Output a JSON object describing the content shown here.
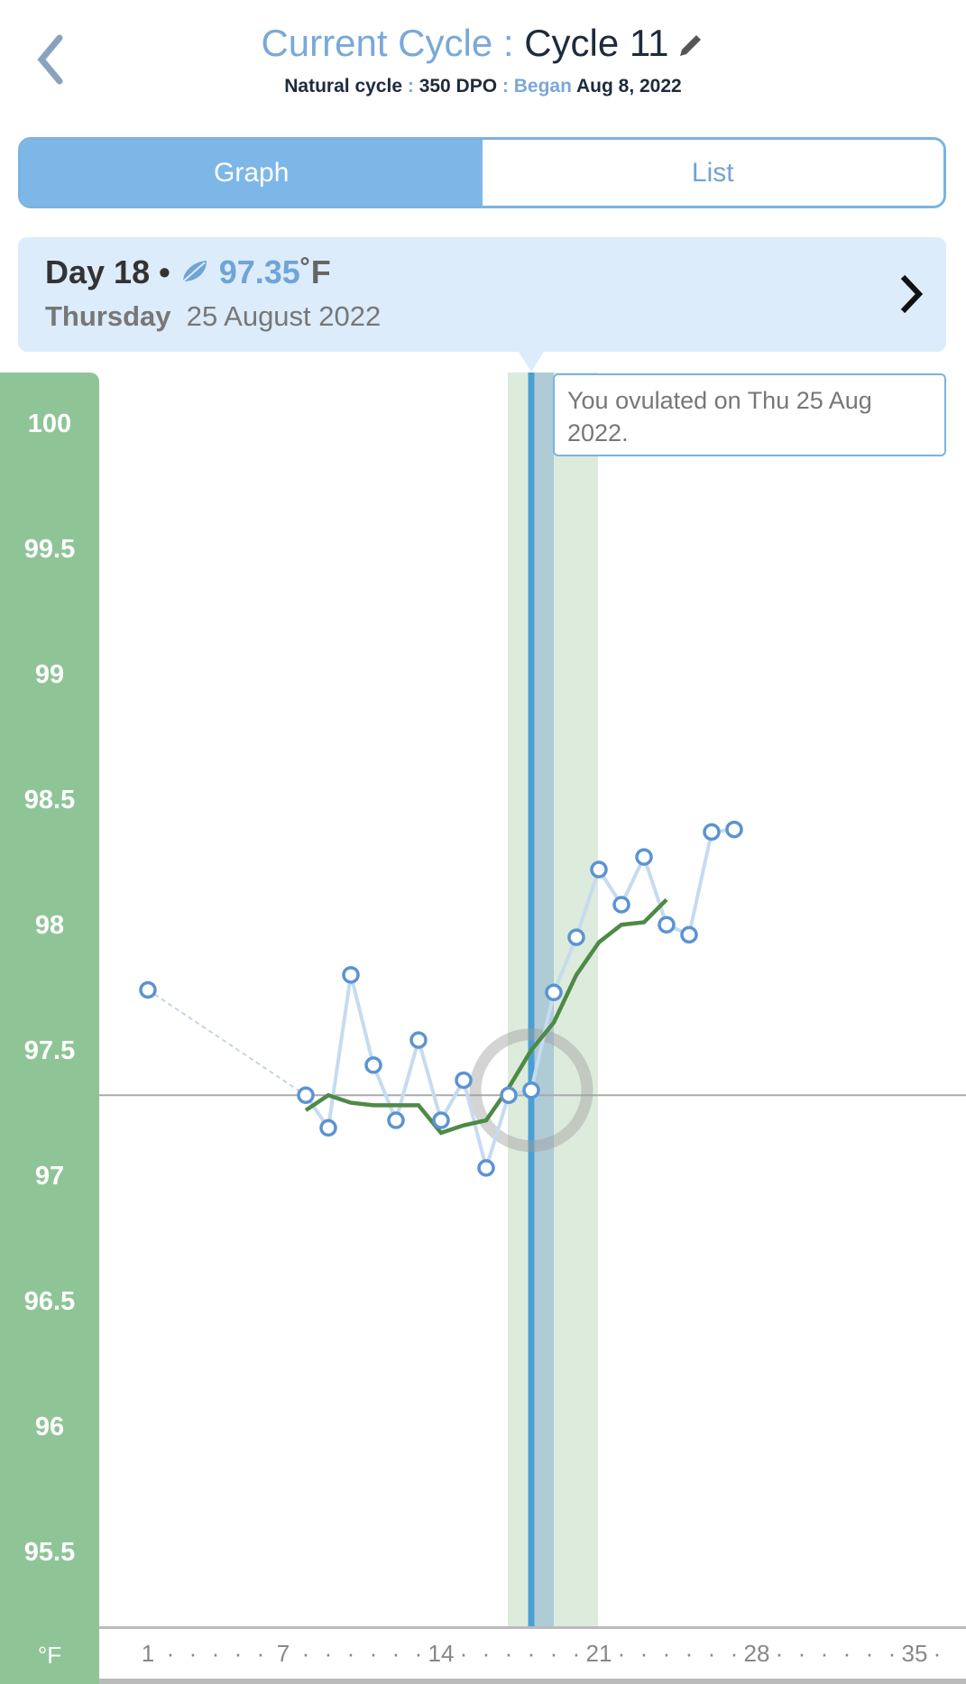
{
  "header": {
    "title_prefix": "Current Cycle : ",
    "title_cycle": "Cycle 11",
    "subtitle_type": "Natural cycle",
    "sep": " : ",
    "subtitle_dpo": "350 DPO",
    "began_label": "Began",
    "began_date": "Aug 8, 2022"
  },
  "tabs": {
    "graph": "Graph",
    "list": "List",
    "active": "graph"
  },
  "day_card": {
    "day": "Day 18",
    "bullet": " • ",
    "temp": "97.35",
    "unit": "˚F",
    "weekday": "Thursday",
    "date": "25 August 2022"
  },
  "tooltip": "You ovulated on Thu 25 Aug 2022.",
  "colors": {
    "accent": "#7db7e8",
    "axis_green": "#8fc596",
    "trend": "#4e8a47",
    "point": "#5b93d3",
    "ovulation_line": "#4a9fd4"
  },
  "chart_data": {
    "type": "line",
    "ylabel_unit": "°F",
    "ylim": [
      95.5,
      100
    ],
    "yticks": [
      "100",
      "99.5",
      "99",
      "98.5",
      "98",
      "97.5",
      "97",
      "96.5",
      "96",
      "95.5"
    ],
    "xlim": [
      1,
      36
    ],
    "xtick_labels": [
      "1",
      "7",
      "14",
      "21",
      "28",
      "35"
    ],
    "xticks": [
      1,
      7,
      14,
      21,
      28,
      35
    ],
    "coverline": 97.33,
    "ovulation_day": 18,
    "fertile_window": [
      17,
      21
    ],
    "selected_day": 18,
    "series": [
      {
        "type": "points",
        "days": [
          1,
          8,
          9,
          10,
          11,
          12,
          13,
          14,
          15,
          16,
          17,
          18,
          19,
          20,
          21,
          22,
          23,
          24,
          25,
          26,
          27
        ],
        "values": [
          97.75,
          97.33,
          97.2,
          97.81,
          97.45,
          97.23,
          97.55,
          97.23,
          97.39,
          97.04,
          97.33,
          97.35,
          97.74,
          97.96,
          98.23,
          98.09,
          98.28,
          98.01,
          97.97,
          98.38,
          98.39
        ]
      },
      {
        "type": "trend",
        "days": [
          8,
          9,
          10,
          11,
          12,
          13,
          14,
          15,
          16,
          17,
          18,
          19,
          20,
          21,
          22,
          23,
          24
        ],
        "values": [
          97.27,
          97.33,
          97.3,
          97.29,
          97.29,
          97.29,
          97.18,
          97.21,
          97.23,
          97.36,
          97.51,
          97.62,
          97.81,
          97.94,
          98.01,
          98.02,
          98.11
        ]
      }
    ]
  }
}
